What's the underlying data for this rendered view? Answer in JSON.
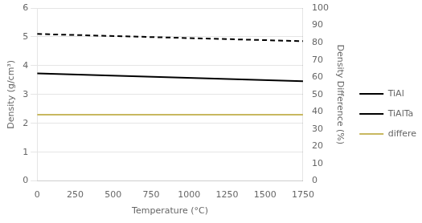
{
  "chart_data": {
    "type": "line",
    "xlabel": "Temperature (°C)",
    "ylabel": "Density (g/cm³)",
    "y2label": "Density Difference (%)",
    "x": [
      0,
      1750
    ],
    "series": [
      {
        "name": "TiAl",
        "color": "#000000",
        "line_style": "solid",
        "values": [
          3.73,
          3.46
        ]
      },
      {
        "name": "TiAlTa",
        "color": "#000000",
        "line_style": "dashed",
        "values": [
          5.1,
          4.85
        ]
      },
      {
        "name": "difference",
        "color": "#c8b860",
        "line_style": "solid",
        "values": [
          2.3,
          2.3
        ]
      }
    ],
    "xlim": [
      0,
      1750
    ],
    "xticks": [
      0,
      250,
      500,
      750,
      1000,
      1250,
      1500,
      1750
    ],
    "ylim": [
      0,
      6
    ],
    "yticks": [
      0,
      1,
      2,
      3,
      4,
      5,
      6
    ],
    "y2lim": [
      0,
      100
    ],
    "y2ticks": [
      0,
      10,
      20,
      30,
      40,
      50,
      60,
      70,
      80,
      90,
      100
    ],
    "grid": "y",
    "legend": "right"
  }
}
